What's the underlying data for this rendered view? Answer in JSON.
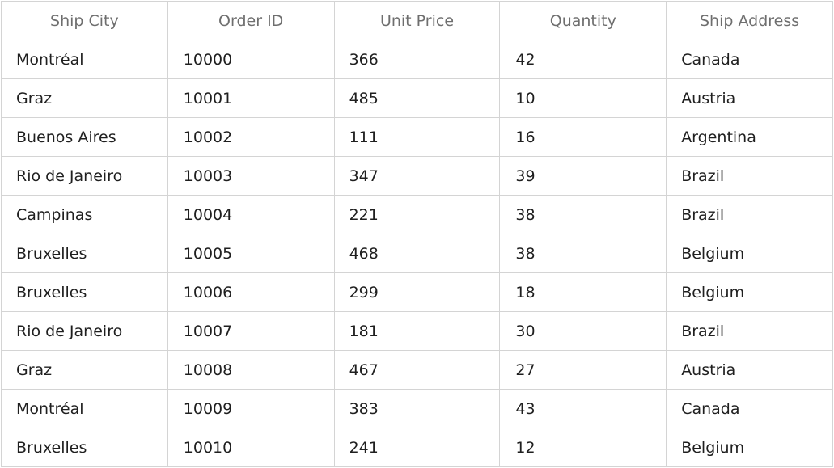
{
  "columns": [
    "Ship City",
    "Order ID",
    "Unit Price",
    "Quantity",
    "Ship Address"
  ],
  "rows": [
    [
      "Montréal",
      "10000",
      "366",
      "42",
      "Canada"
    ],
    [
      "Graz",
      "10001",
      "485",
      "10",
      "Austria"
    ],
    [
      "Buenos Aires",
      "10002",
      "111",
      "16",
      "Argentina"
    ],
    [
      "Rio de Janeiro",
      "10003",
      "347",
      "39",
      "Brazil"
    ],
    [
      "Campinas",
      "10004",
      "221",
      "38",
      "Brazil"
    ],
    [
      "Bruxelles",
      "10005",
      "468",
      "38",
      "Belgium"
    ],
    [
      "Bruxelles",
      "10006",
      "299",
      "18",
      "Belgium"
    ],
    [
      "Rio de Janeiro",
      "10007",
      "181",
      "30",
      "Brazil"
    ],
    [
      "Graz",
      "10008",
      "467",
      "27",
      "Austria"
    ],
    [
      "Montréal",
      "10009",
      "383",
      "43",
      "Canada"
    ],
    [
      "Bruxelles",
      "10010",
      "241",
      "12",
      "Belgium"
    ]
  ],
  "colors": {
    "border": "#d4d4d4",
    "header_text": "#6e6e6e",
    "cell_text": "#1f1f1f",
    "background": "#ffffff"
  }
}
